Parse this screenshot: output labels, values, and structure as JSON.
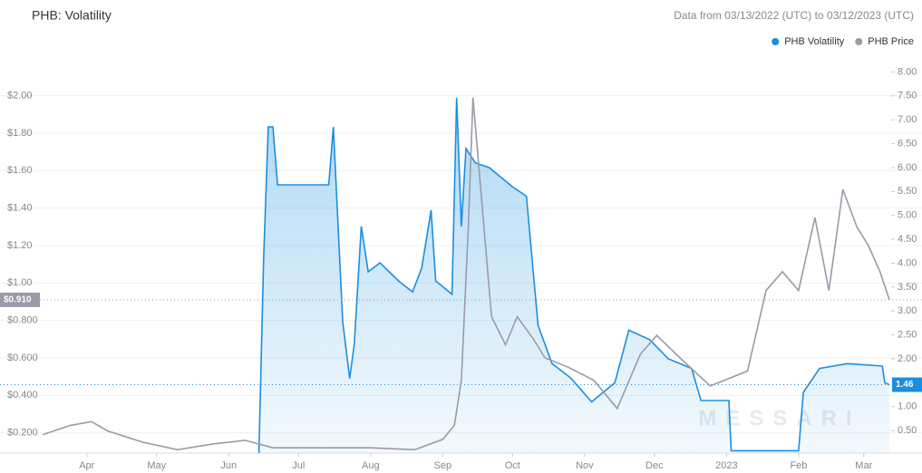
{
  "chart_data": {
    "type": "line",
    "title": "PHB: Volatility",
    "subtitle": "Data from 03/13/2022 (UTC) to 03/12/2023 (UTC)",
    "watermark": "MESSARI",
    "xlim": [
      "2022-03-13",
      "2023-03-12"
    ],
    "xticks": [
      {
        "value": "2022-04-01",
        "label": "Apr"
      },
      {
        "value": "2022-05-01",
        "label": "May"
      },
      {
        "value": "2022-06-01",
        "label": "Jun"
      },
      {
        "value": "2022-07-01",
        "label": "Jul"
      },
      {
        "value": "2022-08-01",
        "label": "Aug"
      },
      {
        "value": "2022-09-01",
        "label": "Sep"
      },
      {
        "value": "2022-10-01",
        "label": "Oct"
      },
      {
        "value": "2022-11-01",
        "label": "Nov"
      },
      {
        "value": "2022-12-01",
        "label": "Dec"
      },
      {
        "value": "2023-01-01",
        "label": "2023"
      },
      {
        "value": "2023-02-01",
        "label": "Feb"
      },
      {
        "value": "2023-03-01",
        "label": "Mar"
      }
    ],
    "ylim": [
      0.092,
      2.211
    ],
    "yticks": [
      {
        "value": 0.2,
        "label": "$0.200"
      },
      {
        "value": 0.4,
        "label": "$0.400"
      },
      {
        "value": 0.6,
        "label": "$0.600"
      },
      {
        "value": 0.8,
        "label": "$0.800"
      },
      {
        "value": 1.0,
        "label": "$1.00"
      },
      {
        "value": 1.2,
        "label": "$1.20"
      },
      {
        "value": 1.4,
        "label": "$1.40"
      },
      {
        "value": 1.6,
        "label": "$1.60"
      },
      {
        "value": 1.8,
        "label": "$1.80"
      },
      {
        "value": 2.0,
        "label": "$2.00"
      }
    ],
    "y2lim": [
      0.03,
      8.33
    ],
    "y2ticks": [
      {
        "value": 0.5,
        "label": "0.50"
      },
      {
        "value": 1,
        "label": "1.00"
      },
      {
        "value": 1.5,
        "label": "1.50"
      },
      {
        "value": 2,
        "label": "2.00"
      },
      {
        "value": 2.5,
        "label": "2.50"
      },
      {
        "value": 3,
        "label": "3.00"
      },
      {
        "value": 3.5,
        "label": "3.50"
      },
      {
        "value": 4,
        "label": "4.00"
      },
      {
        "value": 4.5,
        "label": "4.50"
      },
      {
        "value": 5,
        "label": "5.00"
      },
      {
        "value": 5.5,
        "label": "5.50"
      },
      {
        "value": 6,
        "label": "6.00"
      },
      {
        "value": 6.5,
        "label": "6.50"
      },
      {
        "value": 7,
        "label": "7.00"
      },
      {
        "value": 7.5,
        "label": "7.50"
      },
      {
        "value": 8,
        "label": "8.00"
      }
    ],
    "grid": true,
    "series": [
      {
        "name": "PHB Volatility",
        "color": "#1a8fe0",
        "axis": "y2",
        "area": true,
        "x": [
          "2022-06-14",
          "2022-06-16",
          "2022-06-18",
          "2022-06-20",
          "2022-06-22",
          "2022-07-14",
          "2022-07-16",
          "2022-07-20",
          "2022-07-23",
          "2022-07-25",
          "2022-07-28",
          "2022-07-31",
          "2022-08-05",
          "2022-08-13",
          "2022-08-19",
          "2022-08-23",
          "2022-08-27",
          "2022-08-29",
          "2022-09-05",
          "2022-09-07",
          "2022-09-09",
          "2022-09-11",
          "2022-09-15",
          "2022-09-21",
          "2022-10-01",
          "2022-10-07",
          "2022-10-12",
          "2022-10-18",
          "2022-10-26",
          "2022-11-04",
          "2022-11-14",
          "2022-11-20",
          "2022-11-29",
          "2022-12-07",
          "2022-12-17",
          "2022-12-21",
          "2023-01-02",
          "2023-01-03",
          "2023-02-01",
          "2023-02-03",
          "2023-02-10",
          "2023-02-22",
          "2023-03-09",
          "2023-03-10",
          "2023-03-12"
        ],
        "values": [
          0.03,
          4.1,
          6.85,
          6.85,
          5.64,
          5.64,
          6.85,
          2.78,
          1.59,
          2.31,
          4.77,
          3.82,
          4.01,
          3.63,
          3.4,
          3.9,
          5.11,
          3.63,
          3.35,
          7.46,
          4.77,
          6.4,
          6.1,
          6.0,
          5.6,
          5.4,
          2.7,
          1.9,
          1.6,
          1.1,
          1.5,
          2.6,
          2.4,
          2.0,
          1.8,
          1.13,
          1.13,
          0.08,
          0.08,
          1.3,
          1.8,
          1.9,
          1.85,
          1.5,
          1.46
        ],
        "value_labels": [
          null,
          null,
          null,
          null,
          null,
          null,
          null,
          null,
          null,
          null,
          null,
          null,
          null,
          null,
          null,
          null,
          null,
          null,
          null,
          null,
          null,
          null,
          null,
          null,
          null,
          null,
          null,
          null,
          null,
          null,
          null,
          null,
          null,
          null,
          null,
          null,
          null,
          null,
          null,
          null,
          null,
          null,
          null,
          null,
          "1.46"
        ]
      },
      {
        "name": "PHB Price",
        "color": "#9a9aa8",
        "axis": "y",
        "x": [
          "2022-03-13",
          "2022-03-25",
          "2022-04-03",
          "2022-04-10",
          "2022-04-25",
          "2022-05-10",
          "2022-05-25",
          "2022-06-08",
          "2022-06-20",
          "2022-07-10",
          "2022-08-01",
          "2022-08-20",
          "2022-09-01",
          "2022-09-06",
          "2022-09-09",
          "2022-09-12",
          "2022-09-14",
          "2022-09-18",
          "2022-09-22",
          "2022-09-28",
          "2022-10-03",
          "2022-10-10",
          "2022-10-15",
          "2022-10-25",
          "2022-11-05",
          "2022-11-15",
          "2022-11-25",
          "2022-12-02",
          "2022-12-12",
          "2022-12-25",
          "2023-01-10",
          "2023-01-18",
          "2023-01-25",
          "2023-02-01",
          "2023-02-08",
          "2023-02-14",
          "2023-02-20",
          "2023-02-26",
          "2023-03-03",
          "2023-03-08",
          "2023-03-12"
        ],
        "values": [
          0.19,
          0.24,
          0.26,
          0.21,
          0.15,
          0.11,
          0.14,
          0.16,
          0.12,
          0.12,
          0.12,
          0.11,
          0.165,
          0.24,
          0.48,
          1.3,
          1.99,
          1.4,
          0.82,
          0.67,
          0.82,
          0.7,
          0.6,
          0.55,
          0.48,
          0.33,
          0.62,
          0.72,
          0.6,
          0.45,
          0.53,
          0.96,
          1.06,
          0.96,
          1.35,
          0.96,
          1.5,
          1.3,
          1.2,
          1.06,
          0.91
        ],
        "value_labels": [
          null,
          null,
          null,
          null,
          null,
          null,
          null,
          null,
          null,
          null,
          null,
          null,
          null,
          null,
          null,
          null,
          null,
          null,
          null,
          null,
          null,
          null,
          null,
          null,
          null,
          null,
          null,
          null,
          null,
          null,
          null,
          null,
          null,
          null,
          null,
          null,
          null,
          null,
          null,
          null,
          "$0.910"
        ]
      }
    ]
  }
}
